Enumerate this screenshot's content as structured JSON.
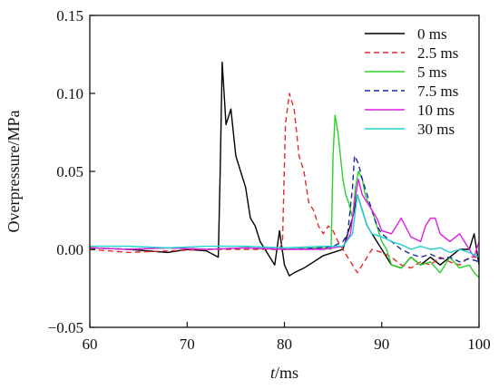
{
  "chart_data": {
    "type": "line",
    "xlabel_italic": "t",
    "xlabel_rest": "/ms",
    "ylabel": "Overpressure/MPa",
    "xlim": [
      60,
      100
    ],
    "ylim": [
      -0.05,
      0.15
    ],
    "xticks": [
      "60",
      "70",
      "80",
      "90",
      "100"
    ],
    "yticks": [
      "−0.05",
      "0.00",
      "0.05",
      "0.10",
      "0.15"
    ],
    "grid": false,
    "legend_position": "top-right",
    "series": [
      {
        "name": "0 ms",
        "color": "#000000",
        "dash": "solid",
        "points": [
          [
            60,
            0.001
          ],
          [
            64,
            0.0
          ],
          [
            68,
            -0.002
          ],
          [
            70,
            0.0
          ],
          [
            72,
            -0.001
          ],
          [
            73.2,
            -0.005
          ],
          [
            73.4,
            0.05
          ],
          [
            73.6,
            0.12
          ],
          [
            74,
            0.08
          ],
          [
            74.5,
            0.09
          ],
          [
            75,
            0.06
          ],
          [
            75.5,
            0.05
          ],
          [
            76,
            0.04
          ],
          [
            76.5,
            0.02
          ],
          [
            77,
            0.015
          ],
          [
            77.5,
            0.005
          ],
          [
            78,
            0.0
          ],
          [
            78.5,
            -0.005
          ],
          [
            79,
            -0.01
          ],
          [
            79.5,
            0.012
          ],
          [
            80,
            -0.01
          ],
          [
            80.5,
            -0.017
          ],
          [
            81,
            -0.015
          ],
          [
            82,
            -0.012
          ],
          [
            83,
            -0.008
          ],
          [
            84,
            -0.004
          ],
          [
            85,
            -0.002
          ],
          [
            86,
            0.0
          ],
          [
            86.5,
            0.01
          ],
          [
            87,
            0.02
          ],
          [
            87.5,
            0.035
          ],
          [
            88,
            0.025
          ],
          [
            88.5,
            0.015
          ],
          [
            89,
            0.01
          ],
          [
            90,
            0.0
          ],
          [
            91,
            -0.01
          ],
          [
            92,
            -0.012
          ],
          [
            93,
            -0.005
          ],
          [
            94,
            -0.01
          ],
          [
            95,
            -0.005
          ],
          [
            96,
            -0.01
          ],
          [
            97,
            -0.005
          ],
          [
            98,
            0.0
          ],
          [
            99,
            0.0
          ],
          [
            99.5,
            0.01
          ],
          [
            100,
            -0.01
          ]
        ]
      },
      {
        "name": "2.5 ms",
        "color": "#e8282d",
        "dash": "6 4",
        "points": [
          [
            60,
            0.0
          ],
          [
            64,
            -0.002
          ],
          [
            68,
            -0.001
          ],
          [
            72,
            0.0
          ],
          [
            76,
            0.0
          ],
          [
            79.5,
            0.0
          ],
          [
            79.8,
            0.005
          ],
          [
            80.1,
            0.08
          ],
          [
            80.5,
            0.1
          ],
          [
            81,
            0.09
          ],
          [
            81.5,
            0.06
          ],
          [
            82,
            0.05
          ],
          [
            82.5,
            0.03
          ],
          [
            83,
            0.025
          ],
          [
            83.5,
            0.015
          ],
          [
            84,
            0.01
          ],
          [
            84.5,
            0.015
          ],
          [
            85,
            0.012
          ],
          [
            85.5,
            0.005
          ],
          [
            86,
            0.0
          ],
          [
            86.5,
            -0.005
          ],
          [
            87,
            -0.01
          ],
          [
            87.5,
            -0.015
          ],
          [
            88,
            -0.01
          ],
          [
            88.5,
            -0.005
          ],
          [
            89,
            0.0
          ],
          [
            90,
            -0.002
          ],
          [
            91,
            -0.005
          ],
          [
            92,
            -0.01
          ],
          [
            93,
            -0.012
          ],
          [
            94,
            -0.008
          ],
          [
            95,
            -0.01
          ],
          [
            96,
            -0.005
          ],
          [
            97,
            -0.008
          ],
          [
            98,
            -0.01
          ],
          [
            99,
            -0.005
          ],
          [
            100,
            -0.005
          ]
        ]
      },
      {
        "name": "5 ms",
        "color": "#2bd12b",
        "dash": "solid",
        "points": [
          [
            60,
            0.001
          ],
          [
            64,
            0.0
          ],
          [
            68,
            0.001
          ],
          [
            72,
            0.0
          ],
          [
            76,
            0.001
          ],
          [
            80,
            0.0
          ],
          [
            84,
            0.001
          ],
          [
            84.8,
            0.0
          ],
          [
            85,
            0.06
          ],
          [
            85.2,
            0.086
          ],
          [
            85.5,
            0.075
          ],
          [
            86,
            0.045
          ],
          [
            86.3,
            0.035
          ],
          [
            86.6,
            0.03
          ],
          [
            87,
            0.02
          ],
          [
            87.3,
            0.04
          ],
          [
            87.6,
            0.05
          ],
          [
            88,
            0.045
          ],
          [
            88.3,
            0.035
          ],
          [
            88.6,
            0.03
          ],
          [
            89,
            0.025
          ],
          [
            89.5,
            0.015
          ],
          [
            90,
            0.005
          ],
          [
            90.5,
            0.0
          ],
          [
            91,
            -0.01
          ],
          [
            92,
            -0.012
          ],
          [
            93,
            -0.005
          ],
          [
            94,
            -0.01
          ],
          [
            95,
            -0.008
          ],
          [
            96,
            -0.015
          ],
          [
            97,
            -0.005
          ],
          [
            98,
            -0.012
          ],
          [
            99,
            -0.01
          ],
          [
            99.5,
            -0.015
          ],
          [
            100,
            -0.018
          ]
        ]
      },
      {
        "name": "7.5 ms",
        "color": "#1d28a8",
        "dash": "6 4",
        "points": [
          [
            60,
            0.001
          ],
          [
            64,
            0.0
          ],
          [
            68,
            0.001
          ],
          [
            72,
            0.0
          ],
          [
            76,
            0.001
          ],
          [
            80,
            0.0
          ],
          [
            84,
            0.001
          ],
          [
            85,
            0.002
          ],
          [
            86,
            0.005
          ],
          [
            86.5,
            0.01
          ],
          [
            87,
            0.04
          ],
          [
            87.2,
            0.06
          ],
          [
            87.6,
            0.055
          ],
          [
            88,
            0.045
          ],
          [
            88.5,
            0.035
          ],
          [
            89,
            0.025
          ],
          [
            89.5,
            0.015
          ],
          [
            90,
            0.01
          ],
          [
            91,
            0.005
          ],
          [
            92,
            0.0
          ],
          [
            93,
            -0.003
          ],
          [
            94,
            -0.005
          ],
          [
            95,
            -0.003
          ],
          [
            96,
            -0.006
          ],
          [
            97,
            -0.005
          ],
          [
            98,
            -0.008
          ],
          [
            99,
            -0.006
          ],
          [
            100,
            -0.008
          ]
        ]
      },
      {
        "name": "10 ms",
        "color": "#e01ee0",
        "dash": "solid",
        "points": [
          [
            60,
            0.001
          ],
          [
            64,
            0.0
          ],
          [
            68,
            0.001
          ],
          [
            72,
            0.0
          ],
          [
            76,
            0.001
          ],
          [
            80,
            0.0
          ],
          [
            84,
            0.0
          ],
          [
            86,
            0.002
          ],
          [
            86.8,
            0.01
          ],
          [
            87.2,
            0.03
          ],
          [
            87.6,
            0.045
          ],
          [
            88,
            0.035
          ],
          [
            88.5,
            0.03
          ],
          [
            89,
            0.025
          ],
          [
            89.5,
            0.02
          ],
          [
            90,
            0.012
          ],
          [
            91,
            0.01
          ],
          [
            92,
            0.02
          ],
          [
            93,
            0.008
          ],
          [
            94,
            0.005
          ],
          [
            94.5,
            0.015
          ],
          [
            95,
            0.02
          ],
          [
            95.5,
            0.02
          ],
          [
            96,
            0.01
          ],
          [
            97,
            0.005
          ],
          [
            98,
            0.01
          ],
          [
            99,
            0.0
          ],
          [
            99.5,
            -0.005
          ],
          [
            100,
            0.005
          ]
        ]
      },
      {
        "name": "30 ms",
        "color": "#22d3d3",
        "dash": "solid",
        "points": [
          [
            60,
            0.002
          ],
          [
            64,
            0.002
          ],
          [
            68,
            0.001
          ],
          [
            72,
            0.002
          ],
          [
            76,
            0.002
          ],
          [
            80,
            0.001
          ],
          [
            84,
            0.002
          ],
          [
            86,
            0.002
          ],
          [
            87,
            0.01
          ],
          [
            87.5,
            0.035
          ],
          [
            88,
            0.025
          ],
          [
            88.5,
            0.015
          ],
          [
            89,
            0.01
          ],
          [
            90,
            0.008
          ],
          [
            91,
            0.005
          ],
          [
            92,
            0.003
          ],
          [
            93,
            0.0
          ],
          [
            94,
            0.002
          ],
          [
            95,
            0.0
          ],
          [
            96,
            0.001
          ],
          [
            97,
            -0.002
          ],
          [
            98,
            0.0
          ],
          [
            99,
            -0.002
          ],
          [
            100,
            -0.005
          ]
        ]
      }
    ]
  }
}
